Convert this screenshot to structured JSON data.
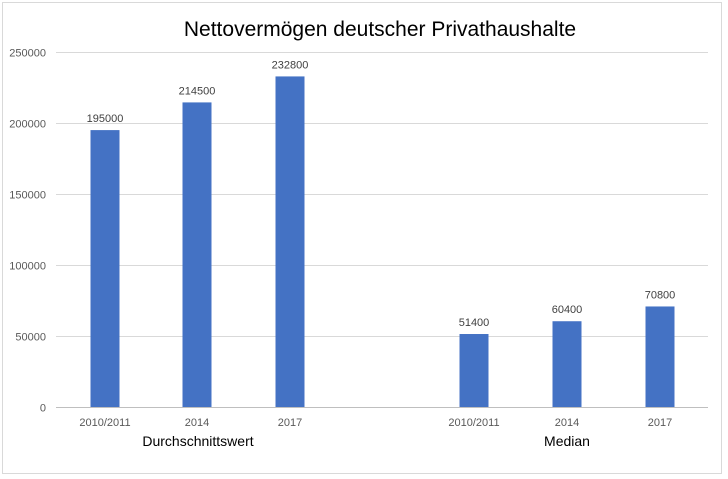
{
  "chart_data": {
    "type": "bar",
    "title": "Nettovermögen deutscher Privathaushalte",
    "xlabel": "",
    "ylabel": "",
    "ylim": [
      0,
      250000
    ],
    "yticks": [
      0,
      50000,
      100000,
      150000,
      200000,
      250000
    ],
    "grid": true,
    "legend": "none",
    "bar_color": "#4472C4",
    "groups": [
      {
        "label": "Durchschnittswert",
        "categories": [
          "2010/2011",
          "2014",
          "2017"
        ],
        "values": [
          195000,
          214500,
          232800
        ]
      },
      {
        "label": "Median",
        "categories": [
          "2010/2011",
          "2014",
          "2017"
        ],
        "values": [
          51400,
          60400,
          70800
        ]
      }
    ]
  }
}
